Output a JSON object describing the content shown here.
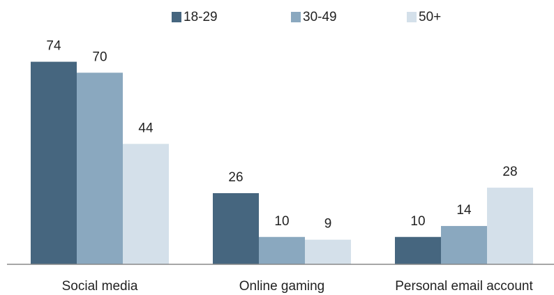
{
  "chart_data": {
    "type": "bar",
    "categories": [
      "Social media",
      "Online gaming",
      "Personal email account"
    ],
    "series": [
      {
        "name": "18-29",
        "color": "#46667f",
        "values": [
          74,
          26,
          10
        ]
      },
      {
        "name": "30-49",
        "color": "#8aa8bf",
        "values": [
          70,
          10,
          14
        ]
      },
      {
        "name": "50+",
        "color": "#d4e0ea",
        "values": [
          44,
          9,
          28
        ]
      }
    ],
    "ylim": [
      0,
      80
    ],
    "legend": "top"
  }
}
